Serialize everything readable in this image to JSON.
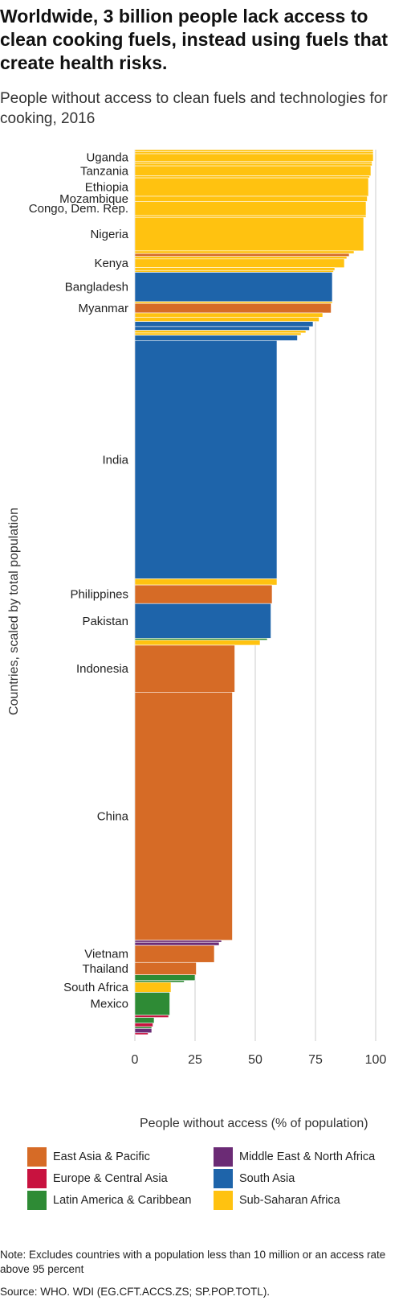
{
  "title": "Worldwide, 3 billion people lack access to clean cooking fuels, instead using fuels that create health risks.",
  "subtitle": "People without access to clean fuels and technologies for cooking, 2016",
  "note": "Note: Excludes countries with a population less than 10 million or an access rate above 95 percent",
  "source": "Source: WHO. WDI (EG.CFT.ACCS.ZS; SP.POP.TOTL).",
  "colors": {
    "East Asia & Pacific": "#d66b26",
    "Europe & Central Asia": "#c8123f",
    "Latin America & Caribbean": "#2e8b35",
    "Middle East & North Africa": "#6b2b75",
    "South Asia": "#1e64aa",
    "Sub-Saharan Africa": "#ffc210"
  },
  "legend": [
    "East Asia & Pacific",
    "Europe & Central Asia",
    "Latin America & Caribbean",
    "Middle East & North Africa",
    "South Asia",
    "Sub-Saharan Africa"
  ],
  "chart_data": {
    "type": "bar",
    "orientation": "horizontal",
    "bar_height_encodes": "total population (millions)",
    "title": "People without access to clean fuels and technologies for cooking, 2016",
    "xlabel": "People without access (% of population)",
    "ylabel": "Countries, scaled by total population",
    "xlim": [
      0,
      100
    ],
    "xticks": [
      0,
      25,
      50,
      75,
      100
    ],
    "grid": "vertical",
    "legend_position": "bottom",
    "series": [
      {
        "label": "",
        "region": "Sub-Saharan Africa",
        "pop": 10.5,
        "value": 99
      },
      {
        "label": "",
        "region": "Sub-Saharan Africa",
        "pop": 12.2,
        "value": 99
      },
      {
        "label": "Uganda",
        "region": "Sub-Saharan Africa",
        "pop": 41.5,
        "value": 99
      },
      {
        "label": "",
        "region": "Sub-Saharan Africa",
        "pop": 11.9,
        "value": 98.5
      },
      {
        "label": "",
        "region": "Sub-Saharan Africa",
        "pop": 14.0,
        "value": 98.5
      },
      {
        "label": "Tanzania",
        "region": "Sub-Saharan Africa",
        "pop": 55.6,
        "value": 98
      },
      {
        "label": "",
        "region": "Sub-Saharan Africa",
        "pop": 11.2,
        "value": 97.5
      },
      {
        "label": "Ethiopia",
        "region": "Sub-Saharan Africa",
        "pop": 102.4,
        "value": 97
      },
      {
        "label": "Mozambique",
        "region": "Sub-Saharan Africa",
        "pop": 28.8,
        "value": 96.5
      },
      {
        "label": "Congo, Dem. Rep.",
        "region": "Sub-Saharan Africa",
        "pop": 78.7,
        "value": 96
      },
      {
        "label": "",
        "region": "Sub-Saharan Africa",
        "pop": 10.0,
        "value": 96
      },
      {
        "label": "Nigeria",
        "region": "Sub-Saharan Africa",
        "pop": 186.0,
        "value": 95
      },
      {
        "label": "",
        "region": "Sub-Saharan Africa",
        "pop": 14.9,
        "value": 91
      },
      {
        "label": "",
        "region": "East Asia & Pacific",
        "pop": 15.8,
        "value": 89
      },
      {
        "label": "",
        "region": "Sub-Saharan Africa",
        "pop": 14.0,
        "value": 88
      },
      {
        "label": "Kenya",
        "region": "Sub-Saharan Africa",
        "pop": 48.5,
        "value": 87
      },
      {
        "label": "",
        "region": "Sub-Saharan Africa",
        "pop": 16.0,
        "value": 83
      },
      {
        "label": "",
        "region": "Sub-Saharan Africa",
        "pop": 10.0,
        "value": 82.5
      },
      {
        "label": "Bangladesh",
        "region": "South Asia",
        "pop": 163.0,
        "value": 82
      },
      {
        "label": "",
        "region": "Sub-Saharan Africa",
        "pop": 10.0,
        "value": 82
      },
      {
        "label": "Myanmar",
        "region": "East Asia & Pacific",
        "pop": 52.9,
        "value": 81.5
      },
      {
        "label": "",
        "region": "Sub-Saharan Africa",
        "pop": 23.7,
        "value": 78
      },
      {
        "label": "",
        "region": "Sub-Saharan Africa",
        "pop": 24.1,
        "value": 76.5
      },
      {
        "label": "",
        "region": "South Asia",
        "pop": 28.0,
        "value": 74
      },
      {
        "label": "",
        "region": "South Asia",
        "pop": 20.8,
        "value": 72.5
      },
      {
        "label": "",
        "region": "Sub-Saharan Africa",
        "pop": 14.8,
        "value": 71
      },
      {
        "label": "",
        "region": "Sub-Saharan Africa",
        "pop": 12.4,
        "value": 69
      },
      {
        "label": "",
        "region": "South Asia",
        "pop": 30.0,
        "value": 67.5
      },
      {
        "label": "India",
        "region": "South Asia",
        "pop": 1324.0,
        "value": 59
      },
      {
        "label": "",
        "region": "Sub-Saharan Africa",
        "pop": 34.7,
        "value": 59
      },
      {
        "label": "Philippines",
        "region": "East Asia & Pacific",
        "pop": 103.3,
        "value": 57
      },
      {
        "label": "Pakistan",
        "region": "South Asia",
        "pop": 193.2,
        "value": 56.5
      },
      {
        "label": "",
        "region": "Latin America & Caribbean",
        "pop": 10.0,
        "value": 55
      },
      {
        "label": "",
        "region": "Sub-Saharan Africa",
        "pop": 28.2,
        "value": 52
      },
      {
        "label": "Indonesia",
        "region": "East Asia & Pacific",
        "pop": 261.1,
        "value": 41.5
      },
      {
        "label": "China",
        "region": "East Asia & Pacific",
        "pop": 1379.0,
        "value": 40.5
      },
      {
        "label": "",
        "region": "Middle East & North Africa",
        "pop": 11.5,
        "value": 36
      },
      {
        "label": "",
        "region": "Middle East & North Africa",
        "pop": 17.5,
        "value": 35
      },
      {
        "label": "Vietnam",
        "region": "East Asia & Pacific",
        "pop": 94.6,
        "value": 33
      },
      {
        "label": "Thailand",
        "region": "East Asia & Pacific",
        "pop": 68.9,
        "value": 25.5
      },
      {
        "label": "",
        "region": "Latin America & Caribbean",
        "pop": 31.5,
        "value": 25
      },
      {
        "label": "",
        "region": "Latin America & Caribbean",
        "pop": 10.0,
        "value": 20.5
      },
      {
        "label": "South Africa",
        "region": "Sub-Saharan Africa",
        "pop": 55.9,
        "value": 15
      },
      {
        "label": "Mexico",
        "region": "Latin America & Caribbean",
        "pop": 127.5,
        "value": 14.5
      },
      {
        "label": "",
        "region": "Europe & Central Asia",
        "pop": 12.0,
        "value": 14
      },
      {
        "label": "",
        "region": "Latin America & Caribbean",
        "pop": 31.8,
        "value": 8
      },
      {
        "label": "",
        "region": "Europe & Central Asia",
        "pop": 19.7,
        "value": 7.5
      },
      {
        "label": "",
        "region": "Latin America & Caribbean",
        "pop": 10.0,
        "value": 7
      },
      {
        "label": "",
        "region": "Middle East & North Africa",
        "pop": 24.1,
        "value": 7
      },
      {
        "label": "",
        "region": "Europe & Central Asia",
        "pop": 10.0,
        "value": 5.5
      }
    ]
  }
}
